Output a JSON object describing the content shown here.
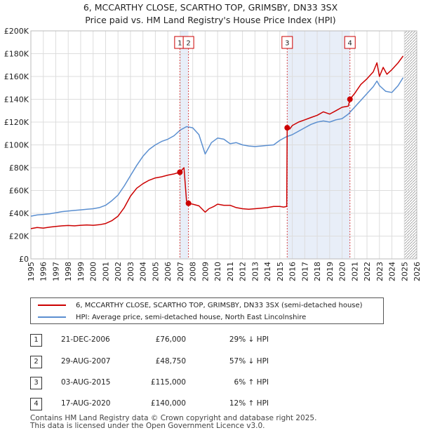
{
  "title": {
    "line1": "6, MCCARTHY CLOSE, SCARTHO TOP, GRIMSBY, DN33 3SX",
    "line2": "Price paid vs. HM Land Registry's House Price Index (HPI)"
  },
  "colors": {
    "red": "#cc0000",
    "blue": "#5b8fd0",
    "band": "#e8eef8",
    "grid": "#dddddd"
  },
  "legend": {
    "red_label": "6, MCCARTHY CLOSE, SCARTHO TOP, GRIMSBY, DN33 3SX (semi-detached house)",
    "blue_label": "HPI: Average price, semi-detached house, North East Lincolnshire"
  },
  "transactions": [
    {
      "num": "1",
      "date": "21-DEC-2006",
      "price": "£76,000",
      "pct": "29% ↓ HPI"
    },
    {
      "num": "2",
      "date": "29-AUG-2007",
      "price": "£48,750",
      "pct": "57% ↓ HPI"
    },
    {
      "num": "3",
      "date": "03-AUG-2015",
      "price": "£115,000",
      "pct": "6% ↑ HPI"
    },
    {
      "num": "4",
      "date": "17-AUG-2020",
      "price": "£140,000",
      "pct": "12% ↑ HPI"
    }
  ],
  "footer": {
    "line1": "Contains HM Land Registry data © Crown copyright and database right 2025.",
    "line2": "This data is licensed under the Open Government Licence v3.0."
  },
  "chart_data": {
    "type": "line",
    "title": "6, MCCARTHY CLOSE, SCARTHO TOP, GRIMSBY, DN33 3SX — Price paid vs. HM Land Registry's House Price Index (HPI)",
    "xlabel": "",
    "ylabel": "",
    "xlim": [
      1995,
      2026
    ],
    "ylim": [
      0,
      200000
    ],
    "x_ticks": [
      1995,
      1996,
      1997,
      1998,
      1999,
      2000,
      2001,
      2002,
      2003,
      2004,
      2005,
      2006,
      2007,
      2008,
      2009,
      2010,
      2011,
      2012,
      2013,
      2014,
      2015,
      2016,
      2017,
      2018,
      2019,
      2020,
      2021,
      2022,
      2023,
      2024,
      2025,
      2026
    ],
    "y_ticks": [
      {
        "value": 0,
        "label": "£0"
      },
      {
        "value": 20000,
        "label": "£20K"
      },
      {
        "value": 40000,
        "label": "£40K"
      },
      {
        "value": 60000,
        "label": "£60K"
      },
      {
        "value": 80000,
        "label": "£80K"
      },
      {
        "value": 100000,
        "label": "£100K"
      },
      {
        "value": 120000,
        "label": "£120K"
      },
      {
        "value": 140000,
        "label": "£140K"
      },
      {
        "value": 160000,
        "label": "£160K"
      },
      {
        "value": 180000,
        "label": "£180K"
      },
      {
        "value": 200000,
        "label": "£200K"
      }
    ],
    "shaded_ranges": [
      [
        2006.97,
        2007.66
      ],
      [
        2015.59,
        2020.63
      ]
    ],
    "future_hatch_from": 2025.0,
    "series": [
      {
        "name": "6, MCCARTHY CLOSE, SCARTHO TOP, GRIMSBY, DN33 3SX (semi-detached house)",
        "color": "#cc0000",
        "x": [
          1995.0,
          1995.5,
          1996.0,
          1996.5,
          1997.0,
          1997.5,
          1998.0,
          1998.5,
          1999.0,
          1999.5,
          2000.0,
          2000.5,
          2001.0,
          2001.5,
          2002.0,
          2002.5,
          2003.0,
          2003.5,
          2004.0,
          2004.5,
          2005.0,
          2005.5,
          2006.0,
          2006.5,
          2006.97,
          2007.3,
          2007.5,
          2007.66,
          2008.0,
          2008.5,
          2009.0,
          2009.3,
          2009.7,
          2010.0,
          2010.5,
          2011.0,
          2011.5,
          2012.0,
          2012.5,
          2013.0,
          2013.5,
          2014.0,
          2014.5,
          2015.0,
          2015.3,
          2015.55,
          2015.59,
          2015.8,
          2016.0,
          2016.5,
          2017.0,
          2017.5,
          2018.0,
          2018.5,
          2019.0,
          2019.5,
          2020.0,
          2020.5,
          2020.63,
          2021.0,
          2021.5,
          2022.0,
          2022.5,
          2022.8,
          2023.0,
          2023.3,
          2023.6,
          2024.0,
          2024.5,
          2024.9
        ],
        "y": [
          26500,
          27500,
          27000,
          27800,
          28500,
          29000,
          29300,
          29000,
          29500,
          29800,
          29500,
          30000,
          31000,
          33500,
          37500,
          45000,
          55000,
          62000,
          66000,
          69000,
          71000,
          72000,
          73500,
          74500,
          76000,
          80000,
          51000,
          48750,
          48000,
          46500,
          41000,
          44000,
          46000,
          48000,
          47000,
          47000,
          45000,
          44000,
          43500,
          44000,
          44500,
          45000,
          46000,
          46000,
          45500,
          46000,
          115000,
          114000,
          117000,
          120000,
          122000,
          124000,
          126000,
          129000,
          127000,
          130000,
          133000,
          134000,
          140000,
          145000,
          153000,
          158000,
          164000,
          172000,
          160000,
          168000,
          162000,
          166000,
          172000,
          178000
        ]
      },
      {
        "name": "HPI: Average price, semi-detached house, North East Lincolnshire",
        "color": "#5b8fd0",
        "x": [
          1995.0,
          1995.5,
          1996.0,
          1996.5,
          1997.0,
          1997.5,
          1998.0,
          1998.5,
          1999.0,
          1999.5,
          2000.0,
          2000.5,
          2001.0,
          2001.5,
          2002.0,
          2002.5,
          2003.0,
          2003.5,
          2004.0,
          2004.5,
          2005.0,
          2005.5,
          2006.0,
          2006.5,
          2007.0,
          2007.5,
          2008.0,
          2008.5,
          2009.0,
          2009.5,
          2010.0,
          2010.5,
          2011.0,
          2011.5,
          2012.0,
          2012.5,
          2013.0,
          2013.5,
          2014.0,
          2014.5,
          2015.0,
          2015.5,
          2016.0,
          2016.5,
          2017.0,
          2017.5,
          2018.0,
          2018.5,
          2019.0,
          2019.5,
          2020.0,
          2020.5,
          2021.0,
          2021.5,
          2022.0,
          2022.5,
          2022.8,
          2023.0,
          2023.5,
          2024.0,
          2024.5,
          2024.9
        ],
        "y": [
          37500,
          38500,
          39000,
          39500,
          40500,
          41500,
          42000,
          42500,
          43000,
          43500,
          44000,
          45000,
          47000,
          51000,
          56000,
          64000,
          73000,
          82000,
          90000,
          96000,
          100000,
          103000,
          105000,
          108000,
          113000,
          116000,
          115000,
          109000,
          92000,
          102000,
          106000,
          105000,
          101000,
          102000,
          100000,
          99000,
          98500,
          99000,
          99500,
          100000,
          104000,
          107000,
          109000,
          112000,
          115000,
          118000,
          120000,
          121000,
          120000,
          122000,
          123000,
          127000,
          133000,
          139000,
          145000,
          151000,
          156000,
          152000,
          147000,
          146000,
          152000,
          159000
        ]
      }
    ],
    "markers": [
      {
        "label": "1",
        "x": 2006.97,
        "y": 76000
      },
      {
        "label": "2",
        "x": 2007.66,
        "y": 48750
      },
      {
        "label": "3",
        "x": 2015.59,
        "y": 115000
      },
      {
        "label": "4",
        "x": 2020.63,
        "y": 140000
      }
    ]
  }
}
